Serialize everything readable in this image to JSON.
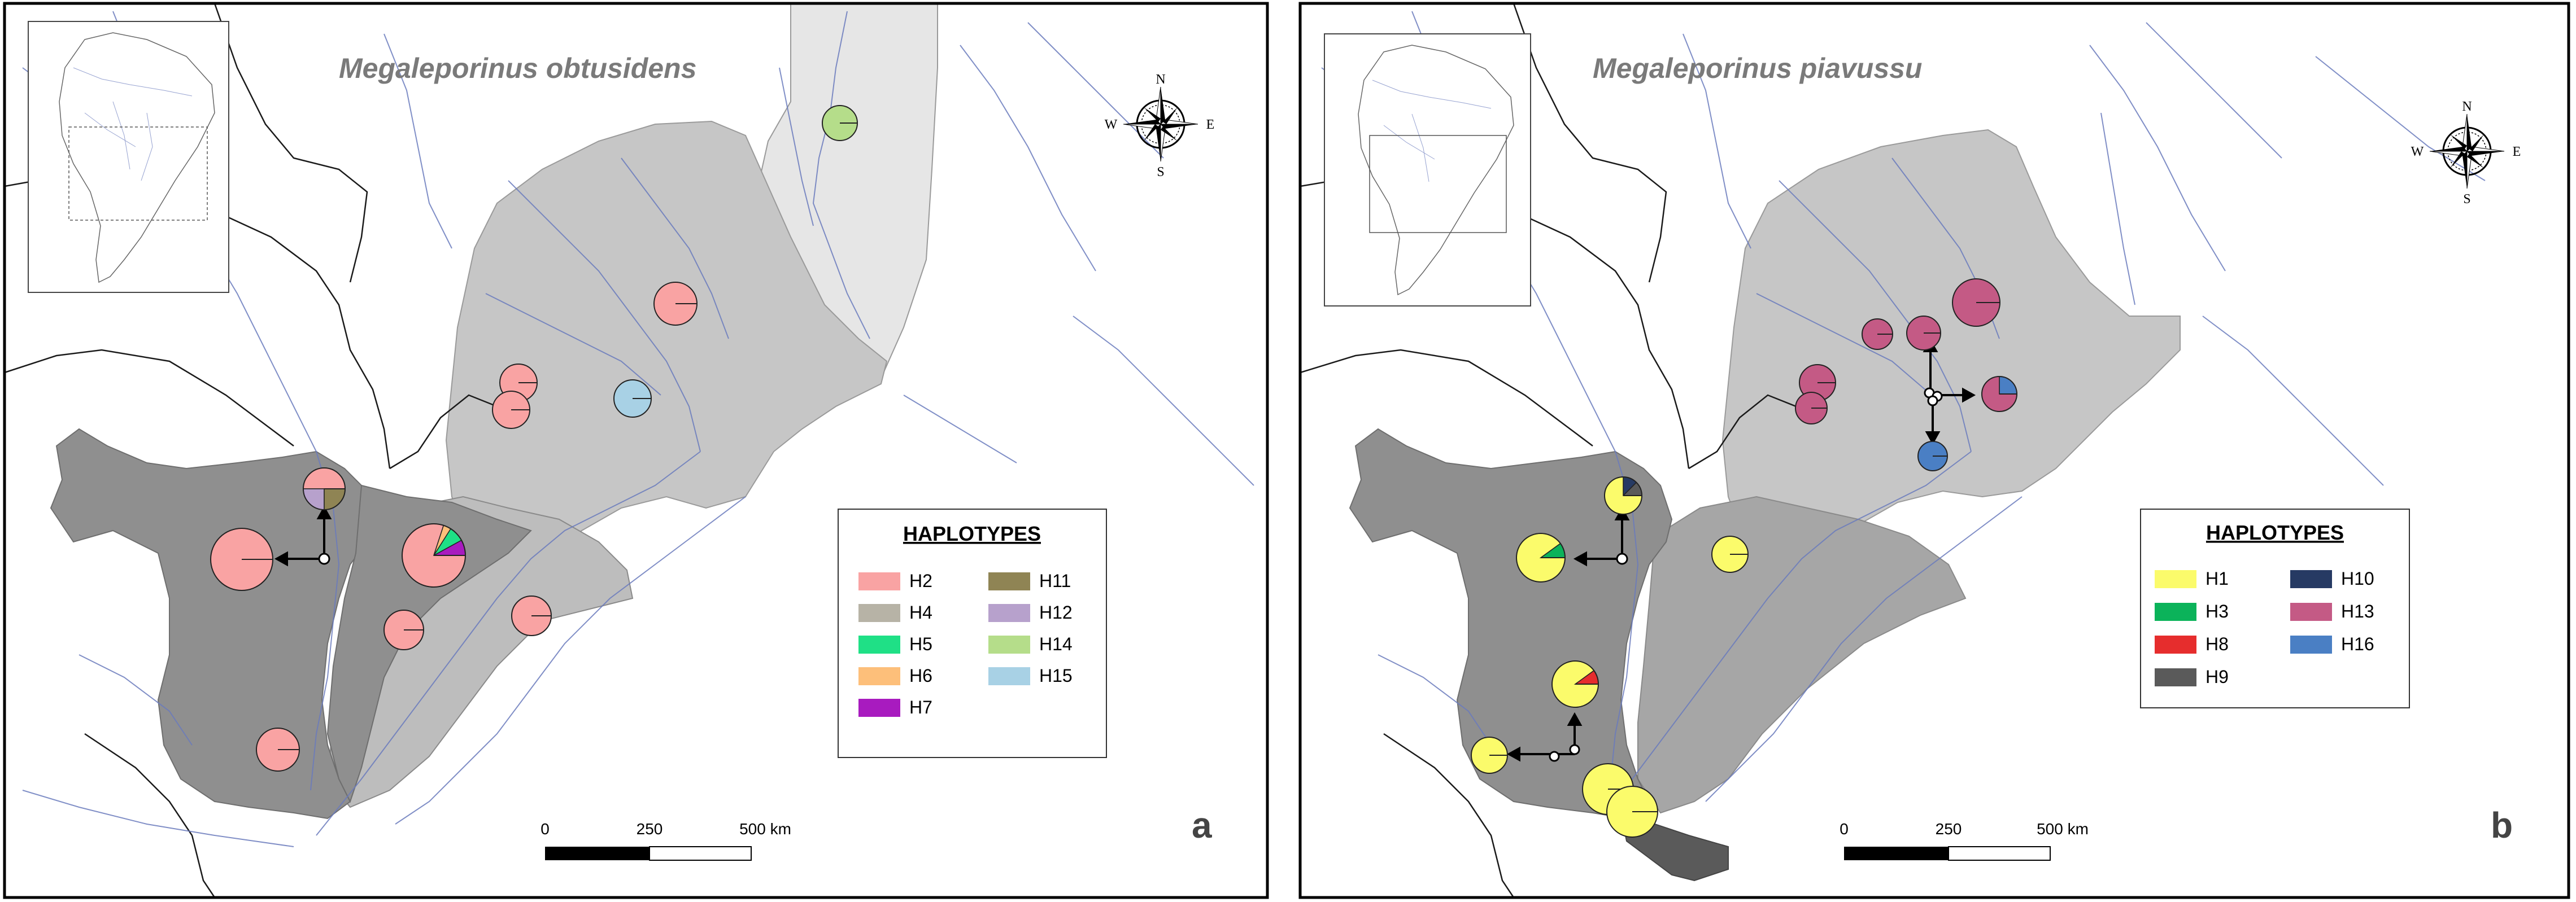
{
  "panels": [
    {
      "title": "Megaleporinus obtusidens",
      "letter": "a",
      "legend_title": "HAPLOTYPES",
      "legend": [
        {
          "label": "H2",
          "color": "#f9a3a3"
        },
        {
          "label": "H4",
          "color": "#b7b3a6"
        },
        {
          "label": "H5",
          "color": "#1fe086"
        },
        {
          "label": "H6",
          "color": "#fdbf7a"
        },
        {
          "label": "H7",
          "color": "#a81bbf"
        },
        {
          "label": "H11",
          "color": "#8f8454"
        },
        {
          "label": "H12",
          "color": "#b7a1cc"
        },
        {
          "label": "H14",
          "color": "#b5dd8a"
        },
        {
          "label": "H15",
          "color": "#a8d1e5"
        }
      ],
      "scale": {
        "ticks": [
          "0",
          "250",
          "500 km"
        ]
      },
      "compass": {
        "n": "N",
        "s": "S",
        "e": "E",
        "w": "W"
      }
    },
    {
      "title": "Megaleporinus piavussu",
      "letter": "b",
      "legend_title": "HAPLOTYPES",
      "legend": [
        {
          "label": "H1",
          "color": "#fbfb6b"
        },
        {
          "label": "H3",
          "color": "#0bb35a"
        },
        {
          "label": "H8",
          "color": "#e62d2d"
        },
        {
          "label": "H9",
          "color": "#5a5a5a"
        },
        {
          "label": "H10",
          "color": "#263a63"
        },
        {
          "label": "H13",
          "color": "#c45a85"
        },
        {
          "label": "H16",
          "color": "#4a7fc4"
        }
      ],
      "scale": {
        "ticks": [
          "0",
          "250",
          "500 km"
        ]
      },
      "compass": {
        "n": "N",
        "s": "S",
        "e": "E",
        "w": "W"
      }
    }
  ]
}
